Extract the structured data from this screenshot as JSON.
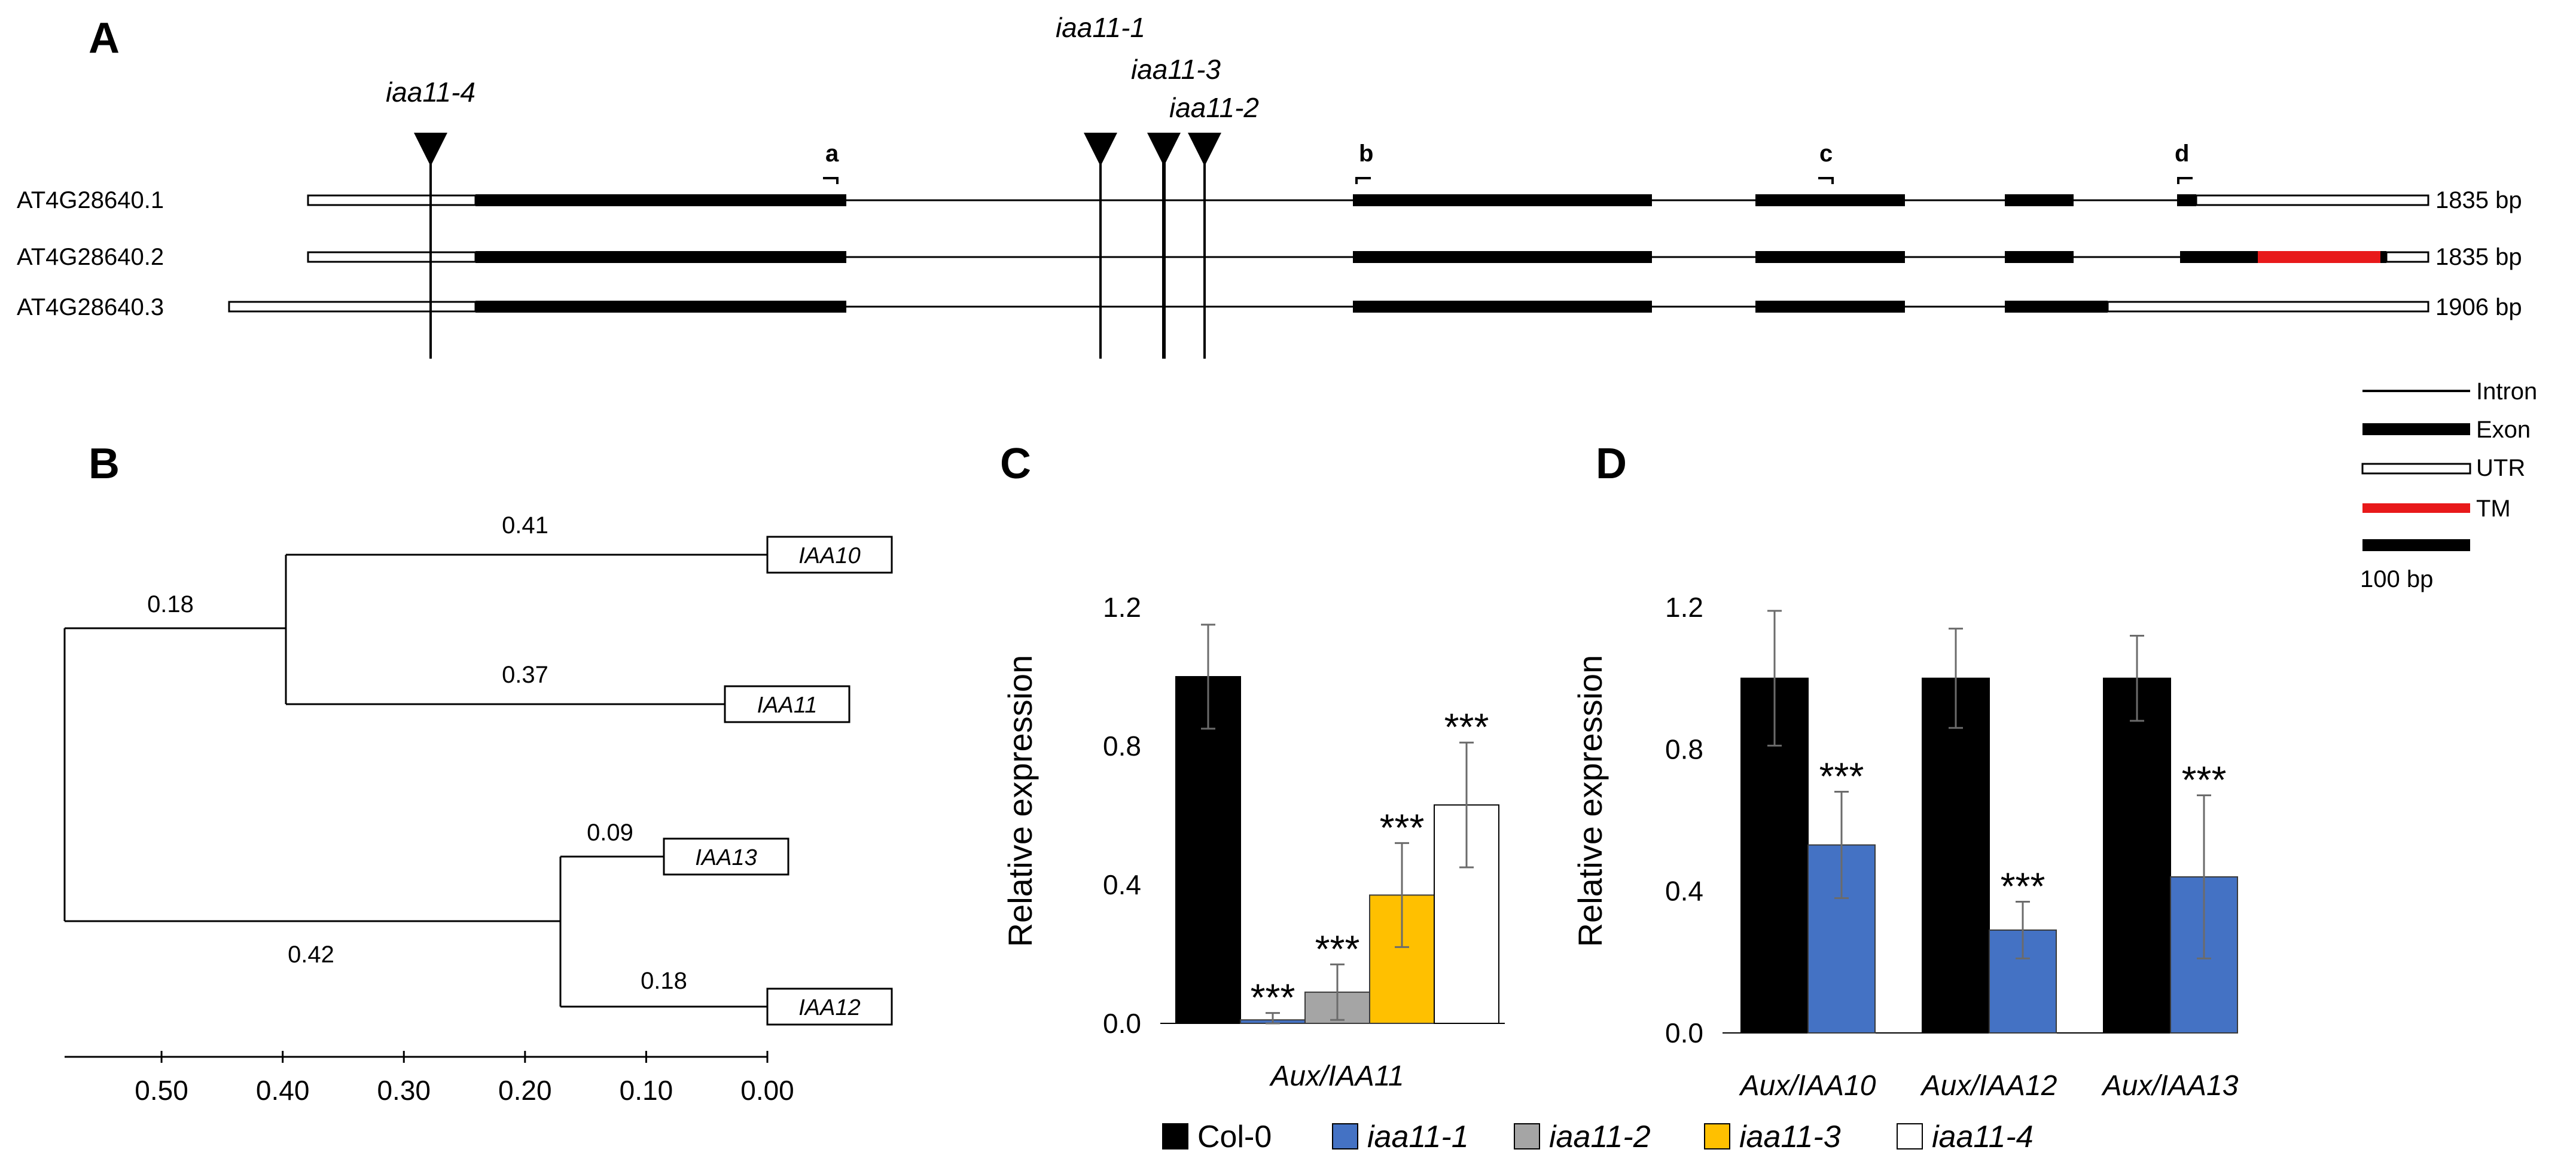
{
  "panels": {
    "a": "A",
    "b": "B",
    "c": "C",
    "d": "D"
  },
  "gene_structure": {
    "transcripts": [
      {
        "name": "AT4G28640.1",
        "size": "1835 bp"
      },
      {
        "name": "AT4G28640.2",
        "size": "1835 bp"
      },
      {
        "name": "AT4G28640.3",
        "size": "1906 bp"
      }
    ],
    "alleles": [
      "iaa11-4",
      "iaa11-1",
      "iaa11-3",
      "iaa11-2"
    ],
    "primers": [
      "a",
      "b",
      "c",
      "d"
    ],
    "legend": [
      "Intron",
      "Exon",
      "UTR",
      "TM",
      "100 bp"
    ],
    "tm_color": "#e8191a"
  },
  "tree": {
    "genes": [
      "IAA10",
      "IAA11",
      "IAA13",
      "IAA12"
    ],
    "branch_lengths": [
      "0.41",
      "0.37",
      "0.18",
      "0.09",
      "0.42",
      "0.18"
    ],
    "axis_ticks": [
      "0.50",
      "0.40",
      "0.30",
      "0.20",
      "0.10",
      "0.00"
    ],
    "axis_max": 0.58
  },
  "chart_data": [
    {
      "type": "bar",
      "panel": "C",
      "ylabel": "Relative expression",
      "ylim": [
        0,
        1.2
      ],
      "yticks": [
        "0.0",
        "0.4",
        "0.8",
        "1.2"
      ],
      "categories": [
        "Aux/IAA11"
      ],
      "series": [
        {
          "name": "Col-0",
          "values": [
            1.0
          ],
          "errors": [
            0.15
          ],
          "stars": [
            ""
          ]
        },
        {
          "name": "iaa11-1",
          "values": [
            0.01
          ],
          "errors": [
            0.02
          ],
          "stars": [
            "***"
          ]
        },
        {
          "name": "iaa11-2",
          "values": [
            0.09
          ],
          "errors": [
            0.08
          ],
          "stars": [
            "***"
          ]
        },
        {
          "name": "iaa11-3",
          "values": [
            0.37
          ],
          "errors": [
            0.15
          ],
          "stars": [
            "***"
          ]
        },
        {
          "name": "iaa11-4",
          "values": [
            0.63
          ],
          "errors": [
            0.18
          ],
          "stars": [
            "***"
          ]
        }
      ]
    },
    {
      "type": "bar",
      "panel": "D",
      "ylabel": "Relative expression",
      "ylim": [
        0,
        1.2
      ],
      "yticks": [
        "0.0",
        "0.4",
        "0.8",
        "1.2"
      ],
      "categories": [
        "Aux/IAA10",
        "Aux/IAA12",
        "Aux/IAA13"
      ],
      "series": [
        {
          "name": "Col-0",
          "values": [
            1.0,
            1.0,
            1.0
          ],
          "errors": [
            0.19,
            0.14,
            0.12
          ],
          "stars": [
            "",
            "",
            ""
          ]
        },
        {
          "name": "iaa11-1",
          "values": [
            0.53,
            0.29,
            0.44
          ],
          "errors": [
            0.15,
            0.08,
            0.23
          ],
          "stars": [
            "***",
            "***",
            "***"
          ]
        }
      ]
    }
  ],
  "legend": [
    {
      "name": "Col-0",
      "color": "#000000"
    },
    {
      "name": "iaa11-1",
      "color": "#4472c4"
    },
    {
      "name": "iaa11-2",
      "color": "#a5a5a5"
    },
    {
      "name": "iaa11-3",
      "color": "#ffc000"
    },
    {
      "name": "iaa11-4",
      "color": "#ffffff"
    }
  ]
}
